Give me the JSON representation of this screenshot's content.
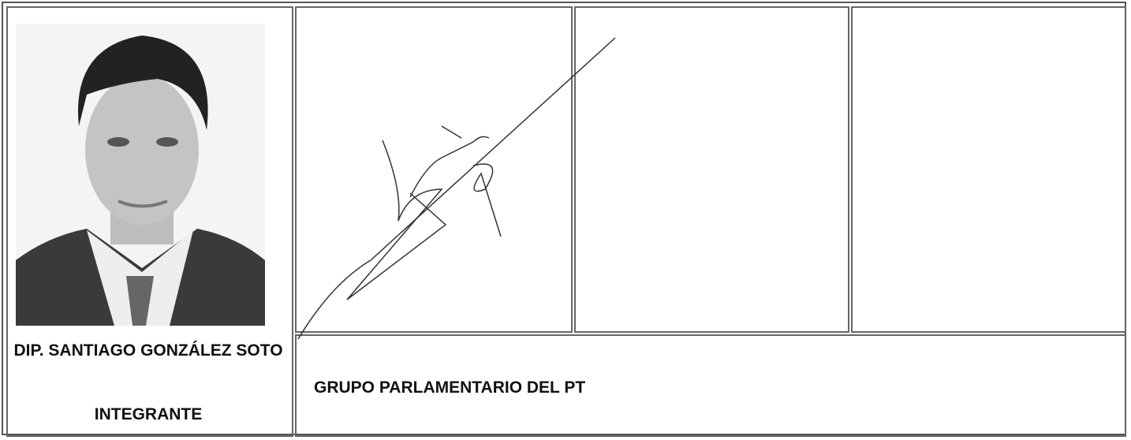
{
  "member": {
    "name": "DIP. SANTIAGO GONZÁLEZ SOTO",
    "role": "INTEGRANTE"
  },
  "group": "GRUPO PARLAMENTARIO DEL PT"
}
